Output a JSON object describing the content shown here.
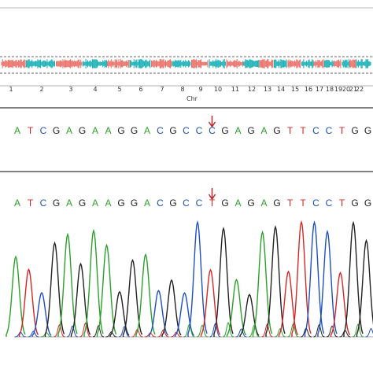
{
  "cnv": {
    "chromosome_labels": [
      "1",
      "2",
      "3",
      "4",
      "5",
      "6",
      "7",
      "8",
      "9",
      "10",
      "11",
      "12",
      "13",
      "14",
      "15",
      "16",
      "17",
      "18",
      "19",
      "20",
      "21",
      "22"
    ],
    "axis_label": "Chr"
  },
  "reference": {
    "sequence": [
      "A",
      "T",
      "C",
      "G",
      "A",
      "G",
      "A",
      "A",
      "G",
      "G",
      "A",
      "C",
      "G",
      "C",
      "C",
      "C",
      "G",
      "A",
      "G",
      "A",
      "G",
      "T",
      "T",
      "C",
      "C",
      "T",
      "G",
      "G"
    ]
  },
  "variant": {
    "sequence": [
      "A",
      "T",
      "C",
      "G",
      "A",
      "G",
      "A",
      "A",
      "G",
      "G",
      "A",
      "C",
      "G",
      "C",
      "C",
      "T",
      "G",
      "A",
      "G",
      "A",
      "G",
      "T",
      "T",
      "C",
      "C",
      "T",
      "G",
      "G"
    ]
  }
}
